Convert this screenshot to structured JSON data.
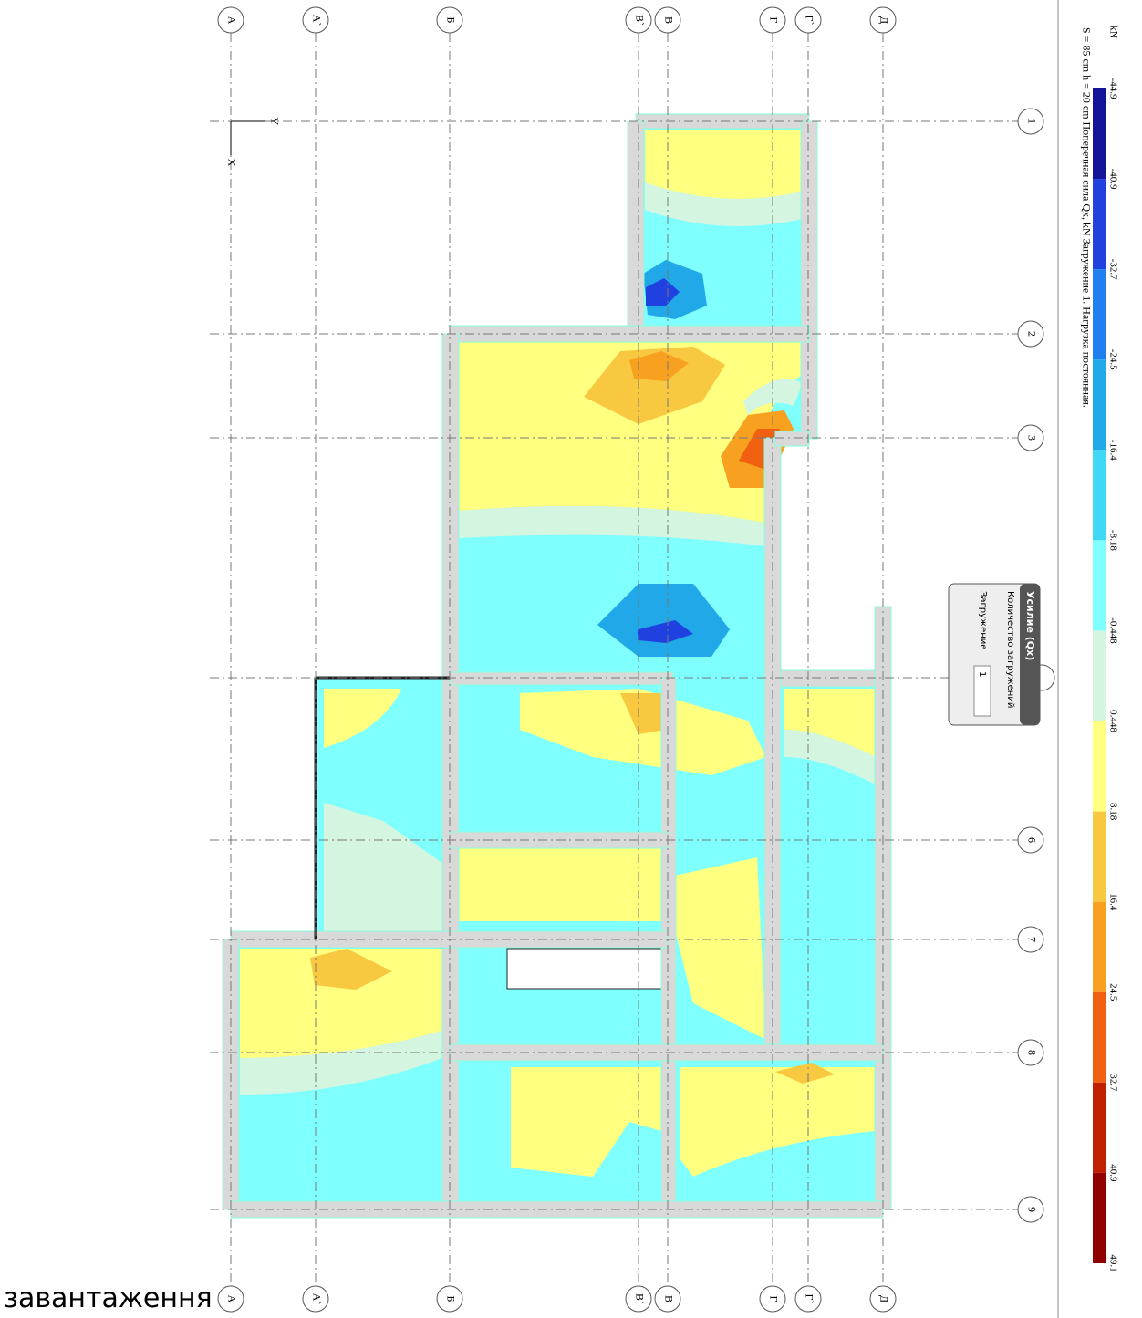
{
  "columns": [
    "А",
    "А`",
    "Б",
    "В`",
    "В",
    "Г",
    "Г`",
    "Д"
  ],
  "rows": [
    "1",
    "2",
    "3",
    "6",
    "7",
    "8",
    "9"
  ],
  "axes": {
    "y": "Y",
    "x": "X"
  },
  "legend": {
    "unit": "kN",
    "values": [
      -44.9,
      -40.9,
      -32.7,
      -24.5,
      -16.4,
      -8.18,
      -0.448,
      0.448,
      8.18,
      16.4,
      24.5,
      32.7,
      40.9,
      49.1
    ],
    "colors": [
      "#14149a",
      "#2040e0",
      "#2080f0",
      "#20a8e8",
      "#40d8f4",
      "#80ffff",
      "#d4f5e0",
      "#ffff80",
      "#f8c840",
      "#f8a020",
      "#f06010",
      "#c02000",
      "#900000"
    ]
  },
  "caption": "S = 85 cm  h = 20 cm  Поперечная сила Qx, kN  Загружение 1.  Нагрузка постоянная.",
  "dialog": {
    "title": "Усилие (Qx)",
    "count_label": "Количество загружений",
    "load_label": "Загружение",
    "load_value": "1"
  },
  "footer": "завантаження"
}
